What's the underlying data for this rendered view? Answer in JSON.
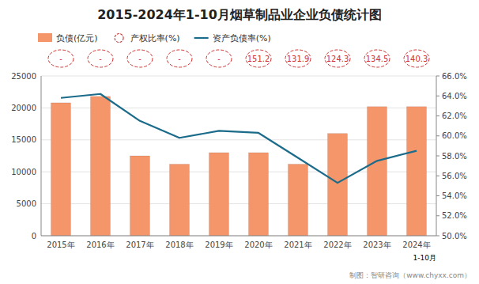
{
  "chart_data": {
    "type": "bar",
    "title": "2015-2024年1-10月烟草制品业企业负债统计图",
    "categories": [
      "2015年",
      "2016年",
      "2017年",
      "2018年",
      "2019年",
      "2020年",
      "2021年",
      "2022年",
      "2023年",
      "2024年"
    ],
    "series": [
      {
        "name": "负债(亿元)",
        "type": "bar",
        "color": "#F5956A",
        "values": [
          20800,
          21800,
          12500,
          11200,
          13000,
          13000,
          11200,
          16000,
          20200,
          20200
        ]
      },
      {
        "name": "产权比率(%)",
        "type": "label",
        "color": "#D03030",
        "marker": "circle",
        "line_style": "dashed",
        "data_labels": true,
        "values": [
          null,
          null,
          null,
          null,
          null,
          151.2,
          131.9,
          124.3,
          134.5,
          140.3
        ],
        "value_labels": [
          "-",
          "-",
          "-",
          "-",
          "-",
          "151.2",
          "131.9",
          "124.3",
          "134.5",
          "140.3"
        ]
      },
      {
        "name": "资产负债率(%)",
        "type": "line",
        "axis": "y2",
        "color": "#1B6B8A",
        "values": [
          63.8,
          64.2,
          61.5,
          59.8,
          60.5,
          60.3,
          57.8,
          55.3,
          57.5,
          58.5
        ]
      }
    ],
    "ylim": [
      0,
      25000
    ],
    "yticks": [
      0,
      5000,
      10000,
      15000,
      20000,
      25000
    ],
    "y2lim": [
      50.0,
      66.0
    ],
    "y2ticks": [
      {
        "value": 50.0,
        "label": "50.0%"
      },
      {
        "value": 52.0,
        "label": "52.0%"
      },
      {
        "value": 54.0,
        "label": "54.0%"
      },
      {
        "value": 56.0,
        "label": "56.0%"
      },
      {
        "value": 58.0,
        "label": "58.0%"
      },
      {
        "value": 60.0,
        "label": "60.0%"
      },
      {
        "value": 62.0,
        "label": "62.0%"
      },
      {
        "value": 64.0,
        "label": "64.0%"
      },
      {
        "value": 66.0,
        "label": "66.0%"
      }
    ],
    "grid": true,
    "legend": "upper left",
    "annotations": [
      "1-10月",
      "制图：智研咨询（www.chyxx.com）"
    ]
  }
}
